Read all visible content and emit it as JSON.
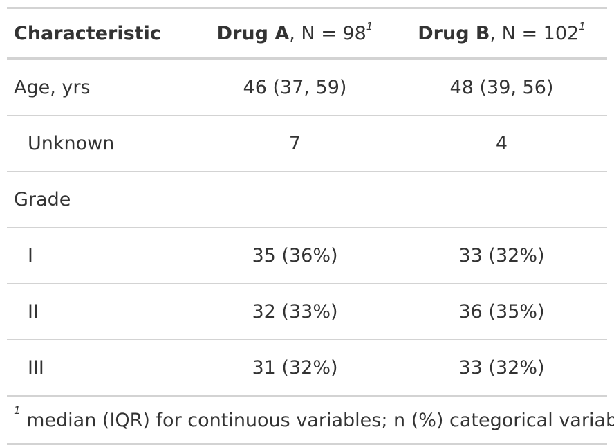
{
  "table": {
    "headers": [
      {
        "bold": "Characteristic",
        "rest": "",
        "sup": ""
      },
      {
        "bold": "Drug A",
        "rest": ", N = 98",
        "sup": "1"
      },
      {
        "bold": "Drug B",
        "rest": ", N = 102",
        "sup": "1"
      }
    ],
    "rows": [
      {
        "label": "Age, yrs",
        "drug_a": "46 (37, 59)",
        "drug_b": "48 (39, 56)"
      },
      {
        "label": "Unknown",
        "drug_a": "7",
        "drug_b": "4"
      },
      {
        "label": "Grade",
        "drug_a": "",
        "drug_b": ""
      },
      {
        "label": "I",
        "drug_a": "35 (36%)",
        "drug_b": "33 (32%)"
      },
      {
        "label": "II",
        "drug_a": "32 (33%)",
        "drug_b": "36 (35%)"
      },
      {
        "label": "III",
        "drug_a": "31 (32%)",
        "drug_b": "33 (32%)"
      }
    ],
    "footnote": {
      "marker": "1",
      "text": " median (IQR) for continuous variables; n (%) categorical variables"
    }
  }
}
